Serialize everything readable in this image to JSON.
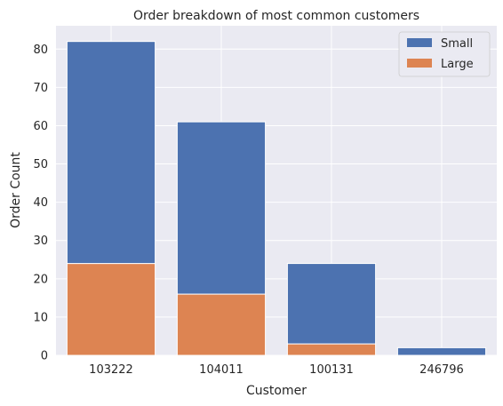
{
  "chart_data": {
    "type": "bar",
    "stacked": true,
    "title": "Order breakdown of most common customers",
    "xlabel": "Customer",
    "ylabel": "Order Count",
    "categories": [
      "103222",
      "104011",
      "100131",
      "246796"
    ],
    "series": [
      {
        "name": "Large",
        "values": [
          24,
          16,
          3,
          0
        ],
        "color": "#dd8452"
      },
      {
        "name": "Small",
        "values": [
          58,
          45,
          21,
          2
        ],
        "color": "#4c72b0"
      }
    ],
    "ylim": [
      0,
      86.1
    ],
    "yticks": [
      0,
      10,
      20,
      30,
      40,
      50,
      60,
      70,
      80
    ],
    "grid": true,
    "background": "#eaeaf2",
    "legend": {
      "placement": "top-right",
      "entries": [
        "Small",
        "Large"
      ]
    }
  }
}
